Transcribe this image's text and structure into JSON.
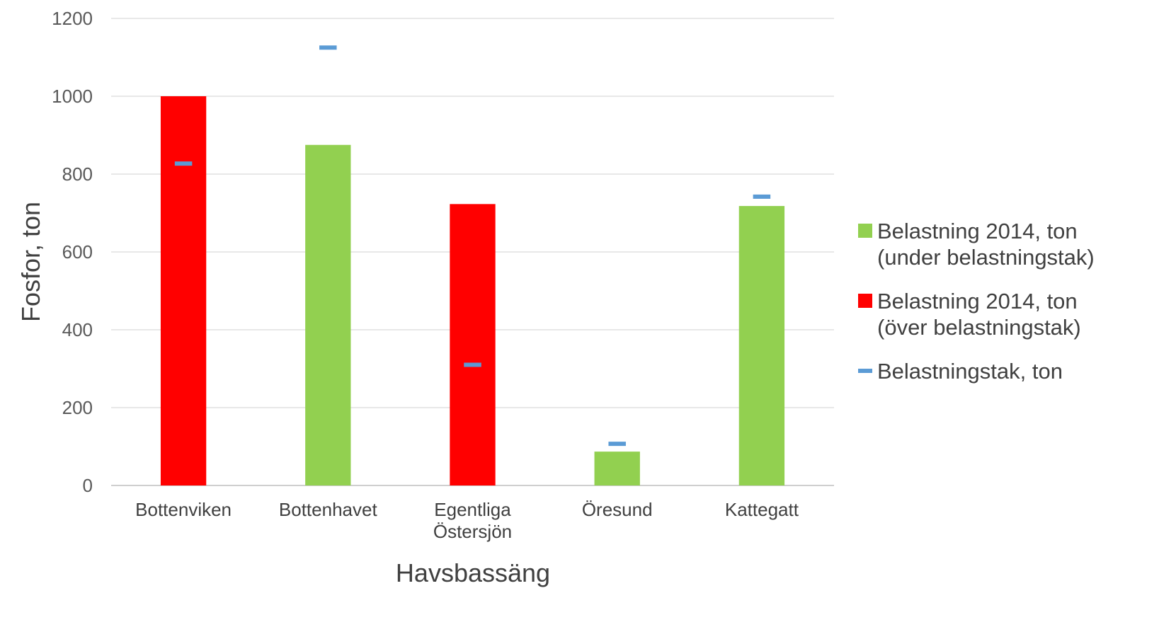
{
  "chart_data": {
    "type": "bar",
    "title": "",
    "xlabel": "Havsbassäng",
    "ylabel": "Fosfor, ton",
    "ylim": [
      0,
      1200
    ],
    "yticks": [
      0,
      200,
      400,
      600,
      800,
      1000,
      1200
    ],
    "grid": true,
    "legend_position": "right",
    "categories": [
      [
        "Bottenviken"
      ],
      [
        "Bottenhavet"
      ],
      [
        "Egentliga",
        "Östersjön"
      ],
      [
        "Öresund"
      ],
      [
        "Kattegatt"
      ]
    ],
    "values": [
      1000,
      875,
      723,
      87,
      718
    ],
    "ceiling": [
      827,
      1125,
      310,
      107,
      742
    ],
    "colors": {
      "under": "#92d050",
      "over": "#ff0000",
      "ceiling": "#5b9bd5",
      "grid": "#d9d9d9",
      "axis": "#bfbfbf"
    },
    "legend": [
      {
        "kind": "under",
        "lines": [
          "Belastning 2014, ton",
          "(under belastningstak)"
        ]
      },
      {
        "kind": "over",
        "lines": [
          "Belastning 2014, ton",
          "(över belastningstak)"
        ]
      },
      {
        "kind": "ceiling",
        "lines": [
          "Belastningstak, ton"
        ]
      }
    ]
  }
}
